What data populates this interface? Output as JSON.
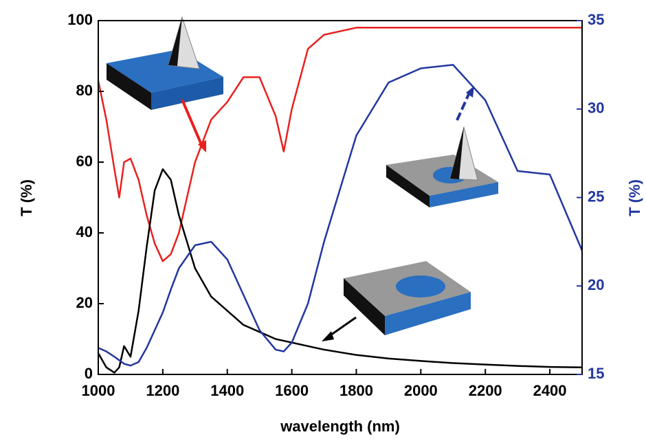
{
  "chart_data": {
    "type": "line",
    "x_label": "wavelength (nm)",
    "y_label": "T (%)",
    "y2_label": "T (%)",
    "x": [
      1000,
      1025,
      1050,
      1065,
      1080,
      1100,
      1125,
      1150,
      1175,
      1200,
      1225,
      1250,
      1300,
      1350,
      1400,
      1450,
      1500,
      1550,
      1575,
      1600,
      1650,
      1700,
      1800,
      1900,
      2000,
      2100,
      2200,
      2300,
      2400,
      2500
    ],
    "series": [
      {
        "color": "#e8201e",
        "values": [
          83,
          72,
          58,
          50,
          60,
          61,
          55,
          45,
          37,
          32,
          34,
          40,
          60,
          72,
          77,
          84,
          84,
          73,
          63,
          75,
          92,
          96,
          98,
          98,
          98,
          98,
          98,
          98,
          98,
          98
        ]
      },
      {
        "color": "#000000",
        "values": [
          6,
          2,
          0.5,
          2,
          8,
          5,
          18,
          36,
          52,
          58,
          55,
          45,
          30,
          22,
          18,
          14,
          12,
          10,
          9.5,
          9,
          8,
          7,
          5.5,
          4.5,
          3.8,
          3.2,
          2.8,
          2.4,
          2.1,
          2
        ]
      },
      {
        "color": "#2236a0",
        "axis": "y2",
        "values": [
          16.5,
          16.3,
          16,
          15.8,
          15.6,
          15.5,
          15.7,
          16.5,
          17.5,
          18.5,
          19.8,
          21,
          22.3,
          22.5,
          21.5,
          19.5,
          17.5,
          16.4,
          16.3,
          16.8,
          19,
          22.5,
          28.5,
          31.5,
          32.3,
          32.5,
          30.5,
          26.5,
          26.3,
          22
        ]
      }
    ],
    "xlim": [
      1000,
      2500
    ],
    "xticks": [
      1000,
      1200,
      1400,
      1600,
      1800,
      2000,
      2200,
      2400
    ],
    "ylim": [
      0,
      100
    ],
    "yticks": [
      0,
      20,
      40,
      60,
      80,
      100
    ],
    "y2lim": [
      15,
      35
    ],
    "y2ticks": [
      15,
      20,
      25,
      30,
      35
    ],
    "y2_color": "#2236a0"
  }
}
